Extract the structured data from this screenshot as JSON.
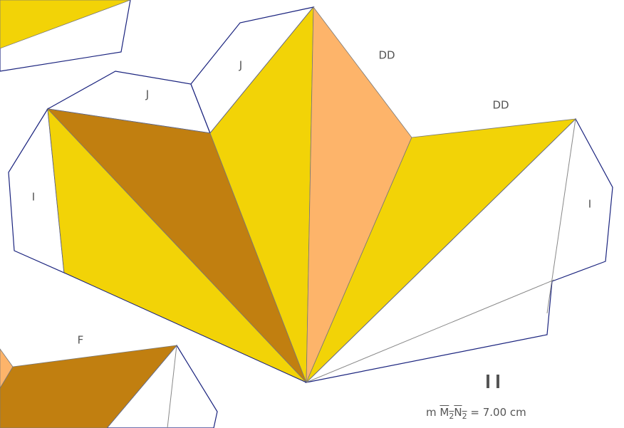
{
  "labels": {
    "j_left": "J",
    "j_right": "J",
    "dd_left": "DD",
    "dd_right": "DD",
    "i_left": "I",
    "i_right": "I",
    "f": "F"
  },
  "measurement": {
    "prefix": "m",
    "point1": "M",
    "sub1": "2",
    "point2": "N",
    "sub2": "2",
    "value": "= 7.00 cm"
  }
}
